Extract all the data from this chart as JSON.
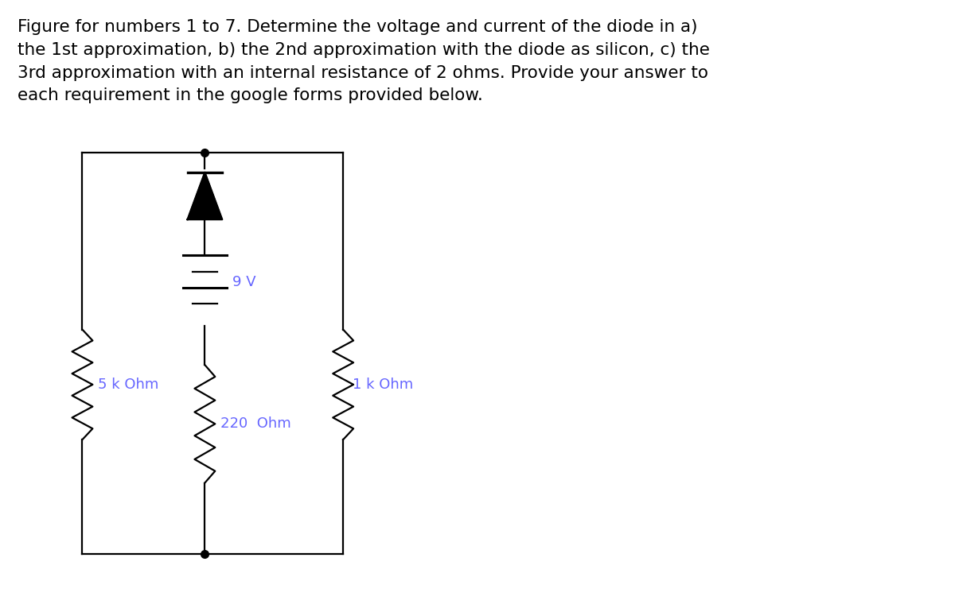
{
  "title_text": "Figure for numbers 1 to 7. Determine the voltage and current of the diode in a)\nthe 1st approximation, b) the 2nd approximation with the diode as silicon, c) the\n3rd approximation with an internal resistance of 2 ohms. Provide your answer to\neach requirement in the google forms provided below.",
  "title_fontsize": 15.5,
  "title_color": "#000000",
  "background_color": "#ffffff",
  "label_5k": "5 k Ohm",
  "label_1k": "1 k Ohm",
  "label_220": "220  Ohm",
  "label_9v": "9 V",
  "label_color": "#6666ff",
  "label_fontsize": 13
}
